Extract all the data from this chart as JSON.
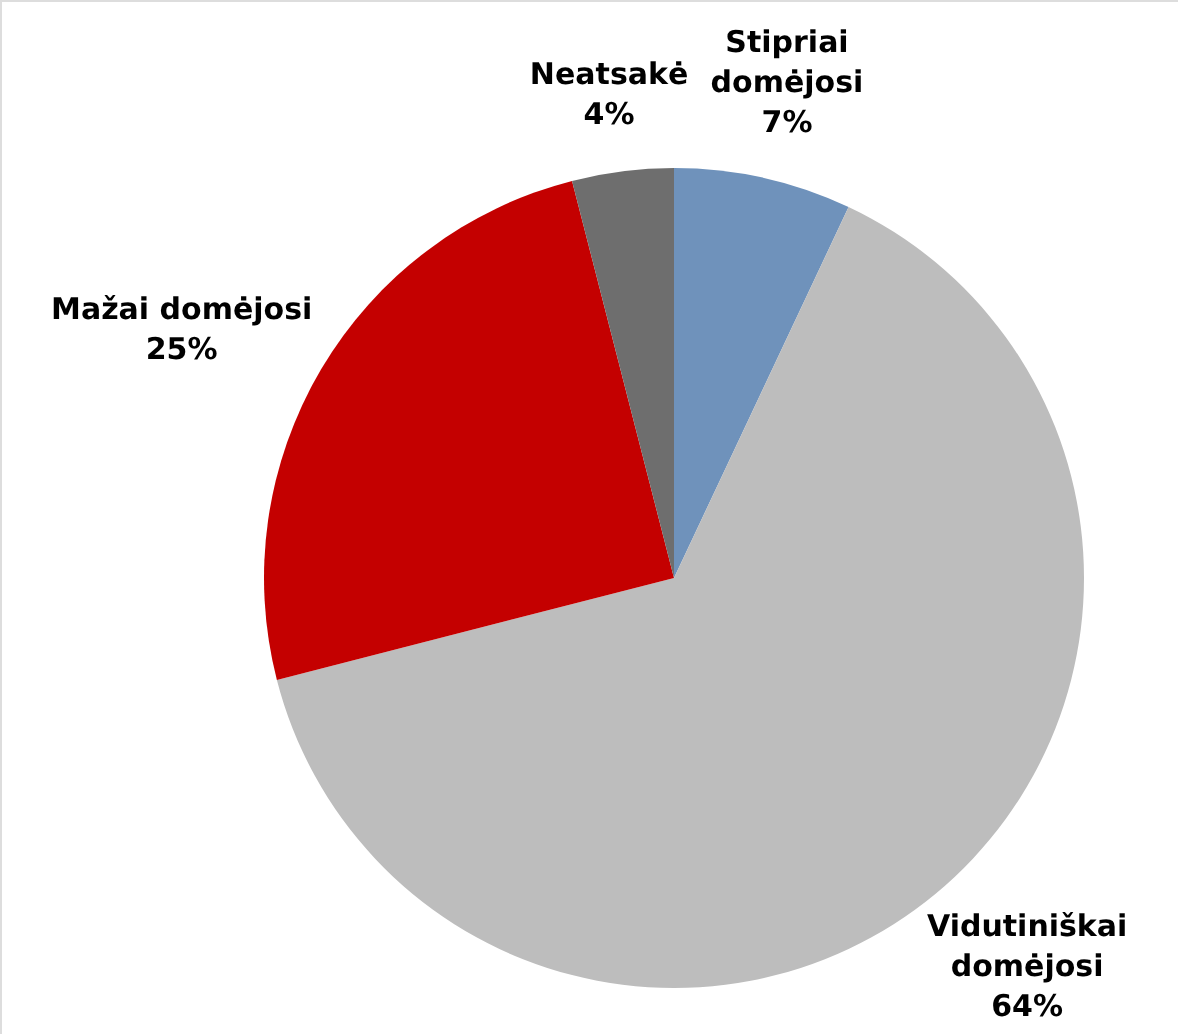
{
  "chart_data": {
    "type": "pie",
    "categories": [
      "Stipriai domėjosi",
      "Vidutiniškai domėjosi",
      "Mažai domėjosi",
      "Neatsakė"
    ],
    "values": [
      7,
      64,
      25,
      4
    ],
    "colors": [
      "#6f92bb",
      "#bdbdbd",
      "#c40000",
      "#6e6e6e"
    ],
    "value_labels": [
      "7%",
      "64%",
      "25%",
      "4%"
    ]
  }
}
